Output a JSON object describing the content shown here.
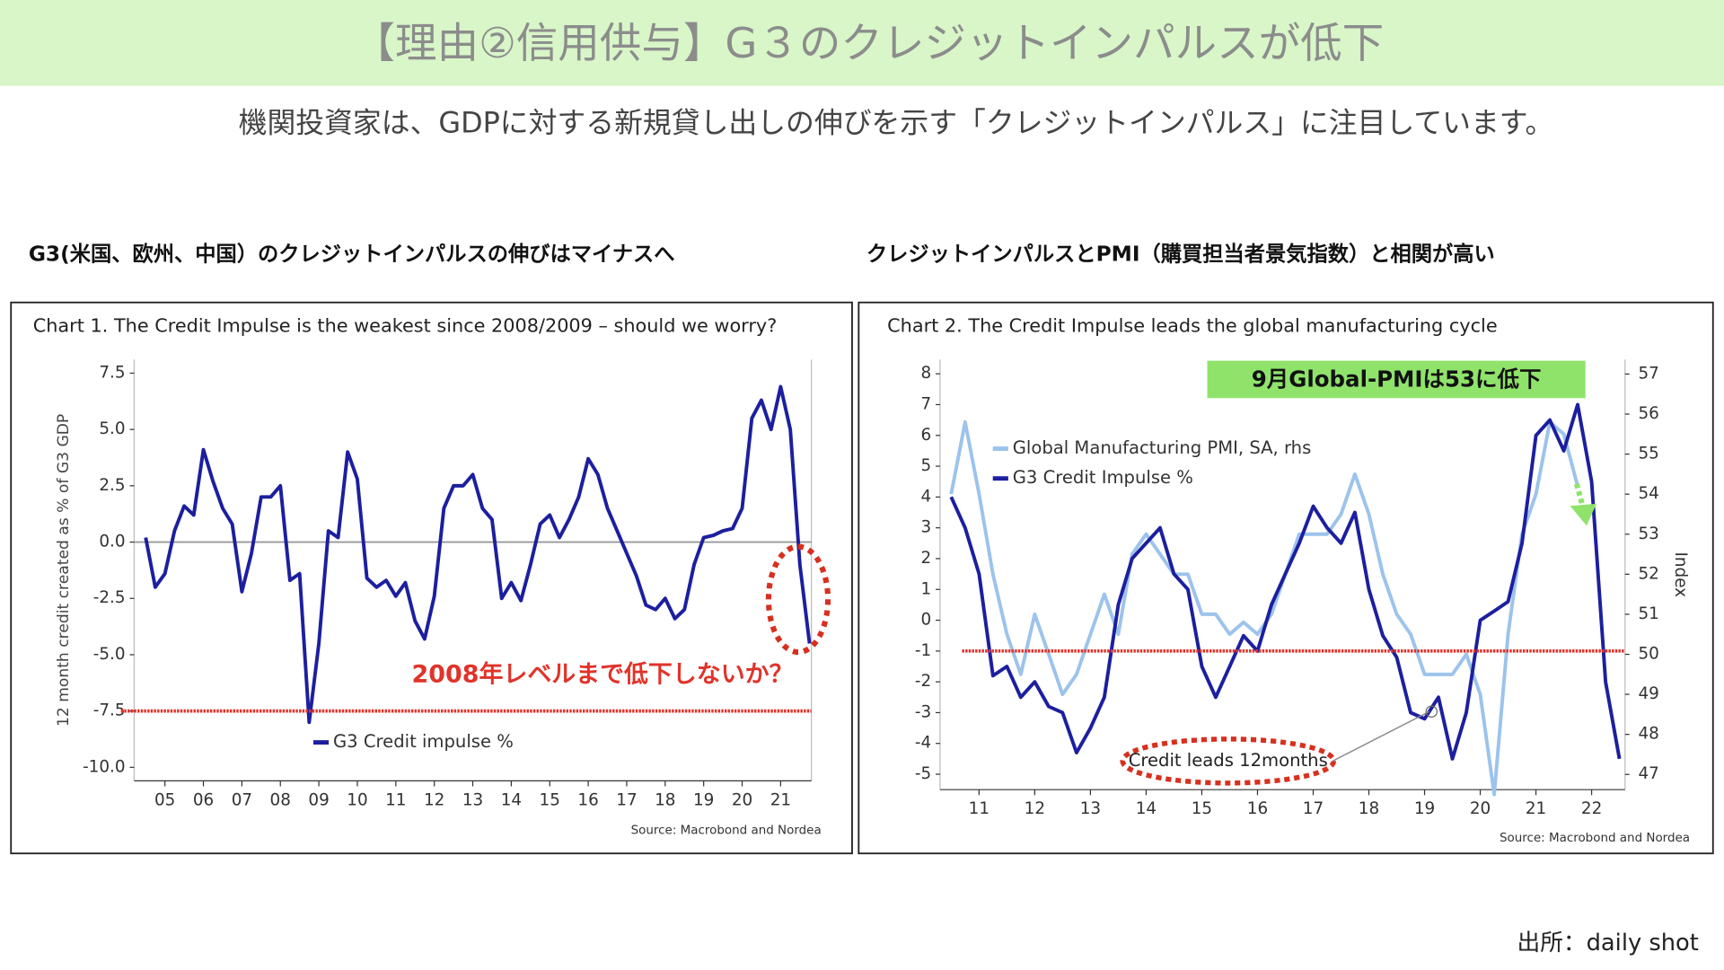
{
  "header": {
    "title": "【理由②信用供与】G３のクレジットインパルスが低下",
    "subtitle": "機関投資家は、GDPに対する新規貸し出しの伸びを示す「クレジットインパルス」に注目しています。"
  },
  "captions": [
    "G3(米国、欧州、中国）のクレジットインパルスの伸びはマイナスへ",
    "クレジットインパルスとPMI（購買担当者景気指数）と相関が高い"
  ],
  "source": "出所：daily shot",
  "chart_data": [
    {
      "type": "line",
      "title": "Chart 1. The Credit Impulse is the weakest since 2008/2009 – should we worry?",
      "source": "Source: Macrobond and Nordea",
      "ylabel": "12 month credit created as % of G3 GDP",
      "annotations": [
        "2008年レベルまで低下しないか？"
      ],
      "reference_line": -7.5,
      "x": [
        2004.5,
        2004.75,
        2005.0,
        2005.25,
        2005.5,
        2005.75,
        2006.0,
        2006.25,
        2006.5,
        2006.75,
        2007.0,
        2007.25,
        2007.5,
        2007.75,
        2008.0,
        2008.25,
        2008.5,
        2008.75,
        2009.0,
        2009.25,
        2009.5,
        2009.75,
        2010.0,
        2010.25,
        2010.5,
        2010.75,
        2011.0,
        2011.25,
        2011.5,
        2011.75,
        2012.0,
        2012.25,
        2012.5,
        2012.75,
        2013.0,
        2013.25,
        2013.5,
        2013.75,
        2014.0,
        2014.25,
        2014.5,
        2014.75,
        2015.0,
        2015.25,
        2015.5,
        2015.75,
        2016.0,
        2016.25,
        2016.5,
        2016.75,
        2017.0,
        2017.25,
        2017.5,
        2017.75,
        2018.0,
        2018.25,
        2018.5,
        2018.75,
        2019.0,
        2019.25,
        2019.5,
        2019.75,
        2020.0,
        2020.25,
        2020.5,
        2020.75,
        2021.0,
        2021.25,
        2021.5,
        2021.75
      ],
      "series": [
        {
          "name": "G3 Credit impulse %",
          "color": "#1c1f9e",
          "values": [
            0.2,
            -2.0,
            -1.4,
            0.5,
            1.6,
            1.2,
            4.1,
            2.7,
            1.5,
            0.8,
            -2.2,
            -0.5,
            2.0,
            2.0,
            2.5,
            -1.7,
            -1.4,
            -8.0,
            -4.5,
            0.5,
            0.2,
            4.0,
            2.8,
            -1.6,
            -2.0,
            -1.7,
            -2.4,
            -1.8,
            -3.5,
            -4.3,
            -2.4,
            1.5,
            2.5,
            2.5,
            3.0,
            1.5,
            1.0,
            -2.5,
            -1.8,
            -2.6,
            -1.0,
            0.8,
            1.2,
            0.2,
            1.0,
            2.0,
            3.7,
            3.0,
            1.5,
            0.5,
            -0.5,
            -1.5,
            -2.8,
            -3.0,
            -2.5,
            -3.4,
            -3.0,
            -1.0,
            0.2,
            0.3,
            0.5,
            0.6,
            1.5,
            5.5,
            6.3,
            5.0,
            6.9,
            5.0,
            -1.0,
            -4.5
          ]
        }
      ],
      "xlim": [
        2004.2,
        2021.8
      ],
      "xticks": [
        {
          "value": 2005,
          "label": "05"
        },
        {
          "value": 2006,
          "label": "06"
        },
        {
          "value": 2007,
          "label": "07"
        },
        {
          "value": 2008,
          "label": "08"
        },
        {
          "value": 2009,
          "label": "09"
        },
        {
          "value": 2010,
          "label": "10"
        },
        {
          "value": 2011,
          "label": "11"
        },
        {
          "value": 2012,
          "label": "12"
        },
        {
          "value": 2013,
          "label": "13"
        },
        {
          "value": 2014,
          "label": "14"
        },
        {
          "value": 2015,
          "label": "15"
        },
        {
          "value": 2016,
          "label": "16"
        },
        {
          "value": 2017,
          "label": "17"
        },
        {
          "value": 2018,
          "label": "18"
        },
        {
          "value": 2019,
          "label": "19"
        },
        {
          "value": 2020,
          "label": "20"
        },
        {
          "value": 2021,
          "label": "21"
        }
      ],
      "ylim": [
        -10.6,
        8.1
      ],
      "yticks": [
        7.5,
        {
          "value": 5,
          "label": "5.0"
        },
        2.5,
        {
          "value": 0,
          "label": "0.0"
        },
        -2.5,
        {
          "value": -5,
          "label": "-5.0"
        },
        -7.5,
        {
          "value": -10,
          "label": "-10.0"
        }
      ]
    },
    {
      "type": "line",
      "title": "Chart 2. The Credit Impulse leads the global manufacturing cycle",
      "source": "Source: Macrobond and Nordea",
      "y2label": "Index",
      "annotations": [
        "9月Global-PMIは53に低下",
        "Credit leads 12months"
      ],
      "reference_line": -1,
      "x": [
        2010.5,
        2010.75,
        2011.0,
        2011.25,
        2011.5,
        2011.75,
        2012.0,
        2012.25,
        2012.5,
        2012.75,
        2013.0,
        2013.25,
        2013.5,
        2013.75,
        2014.0,
        2014.25,
        2014.5,
        2014.75,
        2015.0,
        2015.25,
        2015.5,
        2015.75,
        2016.0,
        2016.25,
        2016.5,
        2016.75,
        2017.0,
        2017.25,
        2017.5,
        2017.75,
        2018.0,
        2018.25,
        2018.5,
        2018.75,
        2019.0,
        2019.25,
        2019.5,
        2019.75,
        2020.0,
        2020.25,
        2020.5,
        2020.75,
        2021.0,
        2021.25,
        2021.5,
        2021.75,
        2022.0,
        2022.25,
        2022.5
      ],
      "series": [
        {
          "name": "Global Manufacturing PMI, SA, rhs",
          "color": "#9cc3ec",
          "axis": "y2",
          "values": [
            54.0,
            55.8,
            54.0,
            52.0,
            50.5,
            49.5,
            51.0,
            50.0,
            49.0,
            49.5,
            50.5,
            51.5,
            50.5,
            52.5,
            53.0,
            52.5,
            52.0,
            52.0,
            51.0,
            51.0,
            50.5,
            50.8,
            50.5,
            51.0,
            52.0,
            53.0,
            53.0,
            53.0,
            53.5,
            54.5,
            53.5,
            52.0,
            51.0,
            50.5,
            49.5,
            49.5,
            49.5,
            50.0,
            49.0,
            46.5,
            50.5,
            53.0,
            54.0,
            55.8,
            55.5,
            54.2,
            null,
            null,
            null
          ]
        },
        {
          "name": "G3 Credit Impulse %",
          "color": "#1c1f9e",
          "values": [
            4.0,
            3.0,
            1.5,
            -1.8,
            -1.5,
            -2.5,
            -2.0,
            -2.8,
            -3.0,
            -4.3,
            -3.5,
            -2.5,
            0.5,
            2.0,
            2.5,
            3.0,
            1.5,
            1.0,
            -1.5,
            -2.5,
            -1.5,
            -0.5,
            -1.0,
            0.5,
            1.5,
            2.5,
            3.7,
            3.0,
            2.5,
            3.5,
            1.0,
            -0.5,
            -1.2,
            -3.0,
            -3.2,
            -2.5,
            -4.5,
            -3.0,
            0.0,
            0.3,
            0.6,
            2.5,
            6.0,
            6.5,
            5.5,
            7.0,
            4.5,
            -2.0,
            -4.5
          ]
        }
      ],
      "xlim": [
        2010.3,
        2022.6
      ],
      "xticks": [
        {
          "value": 2011,
          "label": "11"
        },
        {
          "value": 2012,
          "label": "12"
        },
        {
          "value": 2013,
          "label": "13"
        },
        {
          "value": 2014,
          "label": "14"
        },
        {
          "value": 2015,
          "label": "15"
        },
        {
          "value": 2016,
          "label": "16"
        },
        {
          "value": 2017,
          "label": "17"
        },
        {
          "value": 2018,
          "label": "18"
        },
        {
          "value": 2019,
          "label": "19"
        },
        {
          "value": 2020,
          "label": "20"
        },
        {
          "value": 2021,
          "label": "21"
        },
        {
          "value": 2022,
          "label": "22"
        }
      ],
      "ylim": [
        -5.5,
        8.46
      ],
      "yticks": [
        8,
        7,
        6,
        5,
        4,
        3,
        2,
        1,
        0,
        -1,
        -2,
        -3,
        -4,
        -5
      ],
      "y2lim": [
        46.62,
        57.36
      ],
      "y2ticks": [
        57,
        56,
        55,
        54,
        53,
        52,
        51,
        50,
        49,
        48,
        47
      ]
    }
  ]
}
